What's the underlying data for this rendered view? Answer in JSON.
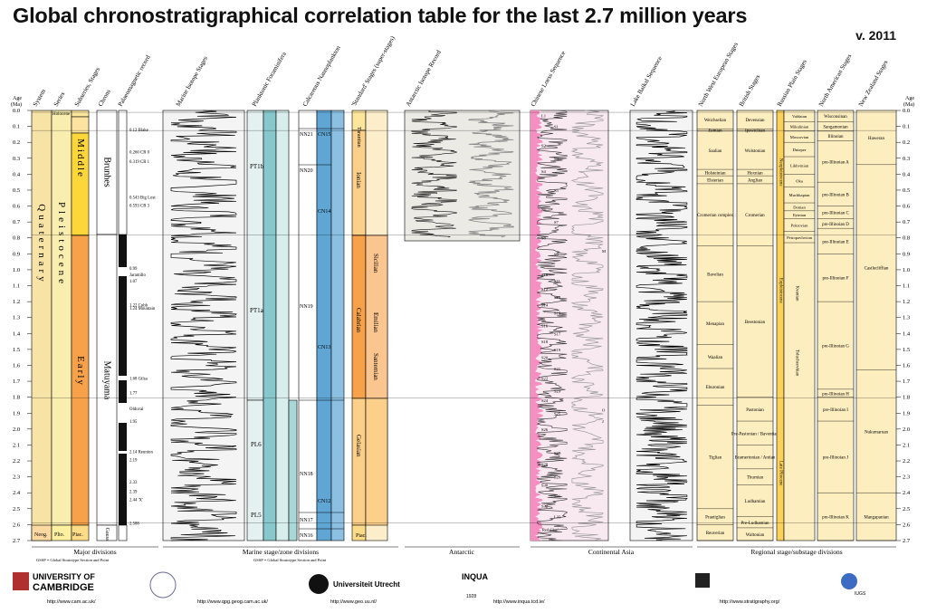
{
  "title": "Global chronostratigraphical correlation table for the last 2.7 million years",
  "version": "v. 2011",
  "axis": {
    "label_line1": "Age",
    "label_line2": "(Ma)",
    "ticks": [
      "0.0",
      "0.1",
      "0.2",
      "0.3",
      "0.4",
      "0.5",
      "0.6",
      "0.7",
      "0.8",
      "0.9",
      "1.0",
      "1.1",
      "1.2",
      "1.3",
      "1.4",
      "1.5",
      "1.6",
      "1.7",
      "1.8",
      "1.9",
      "2.0",
      "2.1",
      "2.2",
      "2.3",
      "2.4",
      "2.5",
      "2.6",
      "2.7"
    ]
  },
  "columns": [
    {
      "key": "system",
      "header": "System"
    },
    {
      "key": "series",
      "header": "Series"
    },
    {
      "key": "subseries",
      "header": "Subseries, Stages"
    },
    {
      "key": "chrons",
      "header": "Chrons"
    },
    {
      "key": "palaeomag",
      "header": "Palaeomagnetic record"
    },
    {
      "key": "marine_isotope",
      "header": "Marine Isotope Stages"
    },
    {
      "key": "planktonic",
      "header": "Planktonic Foraminifera"
    },
    {
      "key": "nannoplankton",
      "header": "Calcareous Nannoplankton"
    },
    {
      "key": "standard",
      "header": "'Standard' Stages (super-stages)"
    },
    {
      "key": "antarctic",
      "header": "Antarctic Isotope Record"
    },
    {
      "key": "loess",
      "header": "Chinese Loess Sequence"
    },
    {
      "key": "baikal",
      "header": "Lake Baikal Sequence"
    },
    {
      "key": "nw_europe",
      "header": "North West European Stages"
    },
    {
      "key": "british",
      "header": "British Stages"
    },
    {
      "key": "russian",
      "header": "Russian Plain Stages"
    },
    {
      "key": "north_american",
      "header": "North American Stages"
    },
    {
      "key": "new_zealand",
      "header": "New Zealand Stages"
    }
  ],
  "major": {
    "system": "Quaternary",
    "series": "Pleistocene",
    "neog": "Neog.",
    "plio": "Plio.",
    "piac": "Piac.",
    "middle": "Middle",
    "early": "Early",
    "holocene": "Holocene",
    "brunhes": "Brunhes",
    "matuyama": "Matuyama",
    "gauss": "Gauss"
  },
  "palaeomag_events": [
    "0.12 Blake",
    "0.260 CR 0",
    "0.319 CR 1",
    "0.543 Big Lost",
    "0.593 CR 3",
    "0.99",
    "Jaramillo",
    "1.07",
    "1.22 Cobb",
    "1.24 Mountain",
    "1.68 Gilsa",
    "1.77",
    "Olduvai",
    "1.95",
    "2.14 Reunion",
    "2.19",
    "2.33",
    "2.39",
    "2.44 'X'",
    "2.588"
  ],
  "planktonic_zones": [
    "PT1b",
    "PT1a",
    "PL6",
    "PL5"
  ],
  "nanno_zones": [
    "NN21",
    "NN20",
    "NN19",
    "NN18",
    "NN17",
    "NN16",
    "CN15",
    "CN14",
    "CN13",
    "CN12",
    "b",
    "a",
    "b",
    "a",
    "d",
    "c",
    "b"
  ],
  "standard_stages": [
    "Tarantian",
    "Ionian",
    "Sicilian",
    "Emilian",
    "Santernian",
    "Calabrian",
    "Gelasian",
    "Piac."
  ],
  "loess_labels": [
    "L1",
    "S1",
    "S2",
    "S3",
    "S4",
    "S5",
    "S6",
    "S7",
    "S8",
    "S9",
    "S10",
    "S11",
    "S12",
    "S13",
    "S14",
    "S15",
    "S16",
    "S17",
    "S18",
    "S19",
    "S20",
    "S21",
    "S22",
    "S23",
    "S24",
    "S25",
    "S26",
    "S27",
    "S28",
    "S29",
    "S30",
    "S31",
    "S32",
    "L33",
    "'Red Clay'",
    "M",
    "O",
    "J"
  ],
  "nw_europe": [
    "Weichselian",
    "Eemian",
    "Saalian",
    "Holsteinian",
    "Elsterian",
    "Cromerian complex",
    "Bavelian",
    "Menapian",
    "Waalian",
    "Eburonian",
    "Tiglian",
    "Praetiglian",
    "Reuverian"
  ],
  "british": [
    "Devensian",
    "Ipswichian",
    "Wolstonian",
    "Hoxnian",
    "Anglian",
    "Cromerian",
    "Beestonian",
    "Pastonian",
    "Pre-Pastonian / Baventian",
    "Bramertonian / Antian",
    "Thurnian",
    "Ludhamian",
    "Pre-Ludhamian",
    "Waltonian"
  ],
  "russian": [
    "Valdaian",
    "Mikulinian",
    "Moscovian",
    "Dnieper",
    "Likhvinian",
    "Oka",
    "Muchkapian",
    "Donian",
    "Ilyinian",
    "Pokrovian",
    "Petropavlovian",
    "Eopleistocene",
    "Neopleistocene",
    "Kvanian",
    "Tolucheevkian",
    "Late Pliocene"
  ],
  "north_american": [
    "Wisconsinan",
    "Sangamonian",
    "Illinoian",
    "pre-Illinoian A",
    "pre-Illinoian B",
    "pre-Illinoian C",
    "pre-Illinoian D",
    "pre-Illinoian E",
    "pre-Illinoian F",
    "pre-Illinoian G",
    "pre-Illinoian H",
    "pre-Illinoian I",
    "pre-Illinoian J",
    "pre-Illinoian K"
  ],
  "new_zealand": [
    "Haweran",
    "Castlecliffian",
    "Nukumaruan",
    "Mangapanian"
  ],
  "bottom_groups": [
    "Major divisions",
    "Marine stage/zone divisions",
    "Antarctic",
    "Continental Asia",
    "Regional stage/substage divisions"
  ],
  "gssp_note": "GSSP = Global Stratotype Section and Point",
  "footer": {
    "cambridge_1": "UNIVERSITY OF",
    "cambridge_2": "CAMBRIDGE",
    "cambridge_url": "http://www.cam.ac.uk/",
    "qpg_url": "http://www.qpg.geog.cam.ac.uk/",
    "utrecht": "Universiteit Utrecht",
    "utrecht_url": "http://www.geo.uu.nl/",
    "inqua": "INQUA",
    "inqua_year": "1928",
    "inqua_url": "http://www.inqua.tcd.ie/",
    "strat_url": "http://www.stratigraphy.org/",
    "ics": "IUGS"
  },
  "colors": {
    "quaternary": "#f7e3a5",
    "pleistocene": "#f9eeaf",
    "middle": "#fdd63a",
    "early": "#f7a14a",
    "gelasian": "#fdd08a",
    "pink": "#f48fc0",
    "blue": "#5fa6d4",
    "teal": "#87c8cc"
  }
}
